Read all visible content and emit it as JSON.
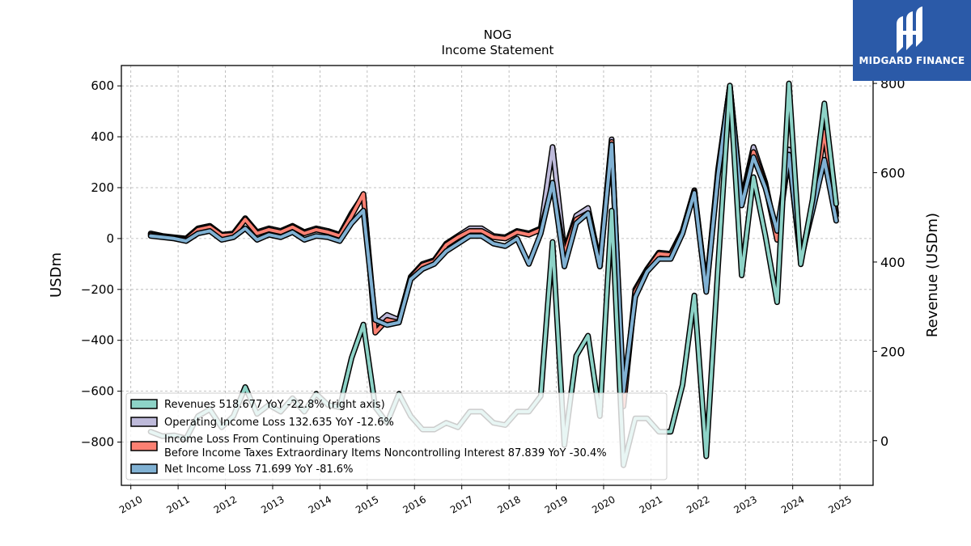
{
  "logo": {
    "text": "MIDGARD FINANCE",
    "background": "#2b5aa8"
  },
  "chart_data": {
    "type": "line",
    "title": "NOG",
    "subtitle": "Income Statement",
    "ylabel": "USDm",
    "ylabel_right": "Revenue (USDm)",
    "ylim": [
      -970,
      680
    ],
    "ylim_right": [
      -100,
      840
    ],
    "yticks": [
      -800,
      -600,
      -400,
      -200,
      0,
      200,
      400,
      600
    ],
    "yticks_right": [
      0,
      200,
      400,
      600,
      800
    ],
    "xlim": [
      2009.8,
      2025.7
    ],
    "xticks": [
      "2010",
      "2011",
      "2012",
      "2013",
      "2014",
      "2015",
      "2016",
      "2017",
      "2018",
      "2019",
      "2020",
      "2021",
      "2022",
      "2023",
      "2024",
      "2025"
    ],
    "grid": true,
    "legend_position": "lower-left",
    "colors": {
      "revenues": "#8dd3c7",
      "operating_income": "#bebada",
      "income_cont_ops": "#fb8072",
      "net_income": "#80b1d3"
    },
    "x": [
      2010.42,
      2010.67,
      2010.92,
      2011.17,
      2011.42,
      2011.67,
      2011.92,
      2012.17,
      2012.42,
      2012.67,
      2012.92,
      2013.17,
      2013.42,
      2013.67,
      2013.92,
      2014.17,
      2014.42,
      2014.67,
      2014.92,
      2015.17,
      2015.42,
      2015.67,
      2015.92,
      2016.17,
      2016.42,
      2016.67,
      2016.92,
      2017.17,
      2017.42,
      2017.67,
      2017.92,
      2018.17,
      2018.42,
      2018.67,
      2018.92,
      2019.17,
      2019.42,
      2019.67,
      2019.92,
      2020.17,
      2020.42,
      2020.67,
      2020.92,
      2021.17,
      2021.42,
      2021.67,
      2021.92,
      2022.17,
      2022.42,
      2022.67,
      2022.92,
      2023.17,
      2023.42,
      2023.67,
      2023.92,
      2024.17,
      2024.42,
      2024.67,
      2024.92
    ],
    "series": [
      {
        "key": "operating_income",
        "name": "Operating Income Loss  132.635 YoY -12.6%",
        "axis": "left",
        "values": [
          20,
          10,
          5,
          0,
          40,
          50,
          15,
          20,
          80,
          25,
          40,
          30,
          50,
          25,
          40,
          30,
          15,
          100,
          170,
          -340,
          -300,
          -320,
          -150,
          -100,
          -85,
          -20,
          10,
          40,
          40,
          10,
          5,
          30,
          20,
          40,
          360,
          -50,
          90,
          120,
          -100,
          390,
          -650,
          -200,
          -120,
          -55,
          -60,
          30,
          190,
          -200,
          270,
          600,
          150,
          360,
          220,
          0,
          350,
          -80,
          130,
          510,
          100
        ]
      },
      {
        "key": "income_cont_ops",
        "name": "Income Loss From Continuing Operations Before Income Taxes Extraordinary Items Noncontrolling Interest  87.839 YoY -30.4%",
        "axis": "left",
        "values": [
          15,
          8,
          3,
          -5,
          35,
          45,
          12,
          15,
          75,
          20,
          35,
          25,
          45,
          20,
          35,
          25,
          10,
          90,
          175,
          -370,
          -320,
          -330,
          -155,
          -105,
          -90,
          -25,
          5,
          30,
          30,
          5,
          0,
          25,
          15,
          35,
          210,
          -60,
          75,
          100,
          -110,
          380,
          -660,
          -210,
          -125,
          -60,
          -65,
          25,
          185,
          -205,
          260,
          600,
          140,
          340,
          210,
          -5,
          330,
          -90,
          120,
          420,
          90
        ]
      },
      {
        "key": "net_income",
        "name": "Net Income Loss  71.699 YoY -81.6%",
        "axis": "left",
        "values": [
          10,
          5,
          0,
          -10,
          20,
          30,
          -5,
          5,
          40,
          -5,
          15,
          5,
          25,
          -5,
          10,
          5,
          -10,
          60,
          110,
          -320,
          -340,
          -330,
          -160,
          -120,
          -100,
          -50,
          -20,
          10,
          10,
          -20,
          -30,
          0,
          -100,
          20,
          220,
          -110,
          60,
          100,
          -110,
          370,
          -600,
          -230,
          -130,
          -80,
          -80,
          20,
          180,
          -210,
          250,
          600,
          130,
          320,
          200,
          30,
          330,
          -80,
          110,
          310,
          70
        ]
      },
      {
        "key": "revenues",
        "name": "Revenues  518.677 YoY -22.8% (right axis)",
        "axis": "right",
        "values": [
          20,
          10,
          12,
          5,
          55,
          70,
          30,
          55,
          120,
          60,
          80,
          65,
          95,
          65,
          105,
          80,
          75,
          185,
          260,
          75,
          40,
          105,
          55,
          25,
          25,
          40,
          30,
          65,
          65,
          40,
          35,
          65,
          65,
          100,
          445,
          -10,
          190,
          235,
          55,
          515,
          -55,
          50,
          50,
          20,
          20,
          125,
          325,
          -35,
          390,
          795,
          370,
          590,
          460,
          310,
          800,
          395,
          540,
          755,
          530
        ]
      }
    ]
  }
}
